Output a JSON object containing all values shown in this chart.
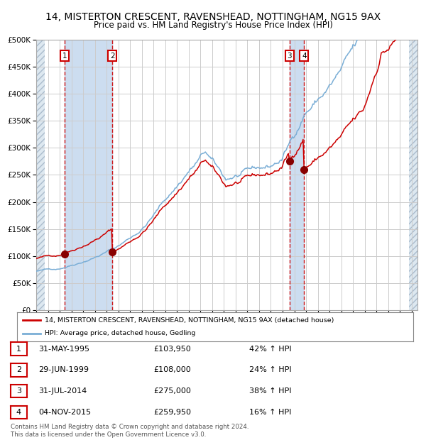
{
  "title": "14, MISTERTON CRESCENT, RAVENSHEAD, NOTTINGHAM, NG15 9AX",
  "subtitle": "Price paid vs. HM Land Registry's House Price Index (HPI)",
  "ylim": [
    0,
    500000
  ],
  "yticks": [
    0,
    50000,
    100000,
    150000,
    200000,
    250000,
    300000,
    350000,
    400000,
    450000,
    500000
  ],
  "sale_dates_num": [
    1995.417,
    1999.5,
    2014.583,
    2015.833
  ],
  "sale_prices": [
    103950,
    108000,
    275000,
    259950
  ],
  "sale_labels": [
    "1",
    "2",
    "3",
    "4"
  ],
  "legend_line1": "14, MISTERTON CRESCENT, RAVENSHEAD, NOTTINGHAM, NG15 9AX (detached house)",
  "legend_line2": "HPI: Average price, detached house, Gedling",
  "table_rows": [
    [
      "1",
      "31-MAY-1995",
      "£103,950",
      "42% ↑ HPI"
    ],
    [
      "2",
      "29-JUN-1999",
      "£108,000",
      "24% ↑ HPI"
    ],
    [
      "3",
      "31-JUL-2014",
      "£275,000",
      "38% ↑ HPI"
    ],
    [
      "4",
      "04-NOV-2015",
      "£259,950",
      "16% ↑ HPI"
    ]
  ],
  "footer": "Contains HM Land Registry data © Crown copyright and database right 2024.\nThis data is licensed under the Open Government Licence v3.0.",
  "red_color": "#cc0000",
  "blue_color": "#7aaed6",
  "grid_color": "#cccccc",
  "hatch_color": "#dde8f0",
  "span_color": "#ccddf0"
}
